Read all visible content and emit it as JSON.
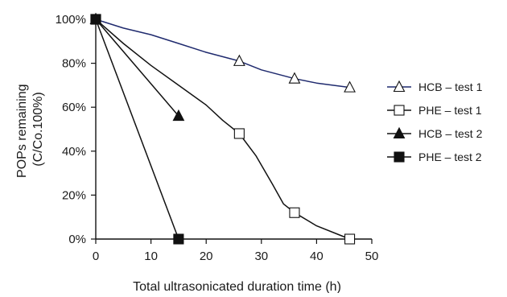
{
  "chart_data": {
    "type": "line",
    "title": "",
    "xlabel": "Total ultrasonicated duration time (h)",
    "ylabel_lines": [
      "POPs remaining",
      "(C/Co.100%)"
    ],
    "xlim": [
      0,
      50
    ],
    "ylim": [
      0,
      100
    ],
    "x_ticks": [
      0,
      10,
      20,
      30,
      40,
      50
    ],
    "x_tick_labels": [
      "0",
      "10",
      "20",
      "30",
      "40",
      "50"
    ],
    "y_ticks": [
      0,
      20,
      40,
      60,
      80,
      100
    ],
    "y_tick_labels": [
      "0%",
      "20%",
      "40%",
      "60%",
      "80%",
      "100%"
    ],
    "grid": false,
    "legend_position": "right",
    "series": [
      {
        "name": "HCB – test 1",
        "marker": "triangle-open",
        "line_color": "#1f2a6e",
        "markers_x": [
          0,
          26,
          36,
          46
        ],
        "markers_y": [
          100,
          81,
          73,
          69
        ],
        "curve_x": [
          0,
          5,
          10,
          15,
          20,
          26,
          30,
          36,
          40,
          46
        ],
        "curve_y": [
          100,
          96,
          93,
          89,
          85,
          81,
          77,
          73,
          71,
          69
        ]
      },
      {
        "name": "PHE – test 1",
        "marker": "square-open",
        "line_color": "#111111",
        "markers_x": [
          0,
          26,
          36,
          46
        ],
        "markers_y": [
          100,
          48,
          12,
          0
        ],
        "curve_x": [
          0,
          5,
          10,
          15,
          20,
          23,
          26,
          29,
          32,
          34,
          36,
          40,
          44,
          46
        ],
        "curve_y": [
          100,
          89,
          79,
          70,
          61,
          54,
          48,
          38,
          25,
          16,
          12,
          6,
          2,
          0
        ]
      },
      {
        "name": "HCB – test 2",
        "marker": "triangle-filled",
        "line_color": "#111111",
        "markers_x": [
          0,
          15
        ],
        "markers_y": [
          100,
          56
        ],
        "curve_x": [
          0,
          15
        ],
        "curve_y": [
          100,
          56
        ]
      },
      {
        "name": "PHE – test 2",
        "marker": "square-filled",
        "line_color": "#111111",
        "markers_x": [
          0,
          15
        ],
        "markers_y": [
          100,
          0
        ],
        "curve_x": [
          0,
          15
        ],
        "curve_y": [
          100,
          0
        ]
      }
    ]
  }
}
